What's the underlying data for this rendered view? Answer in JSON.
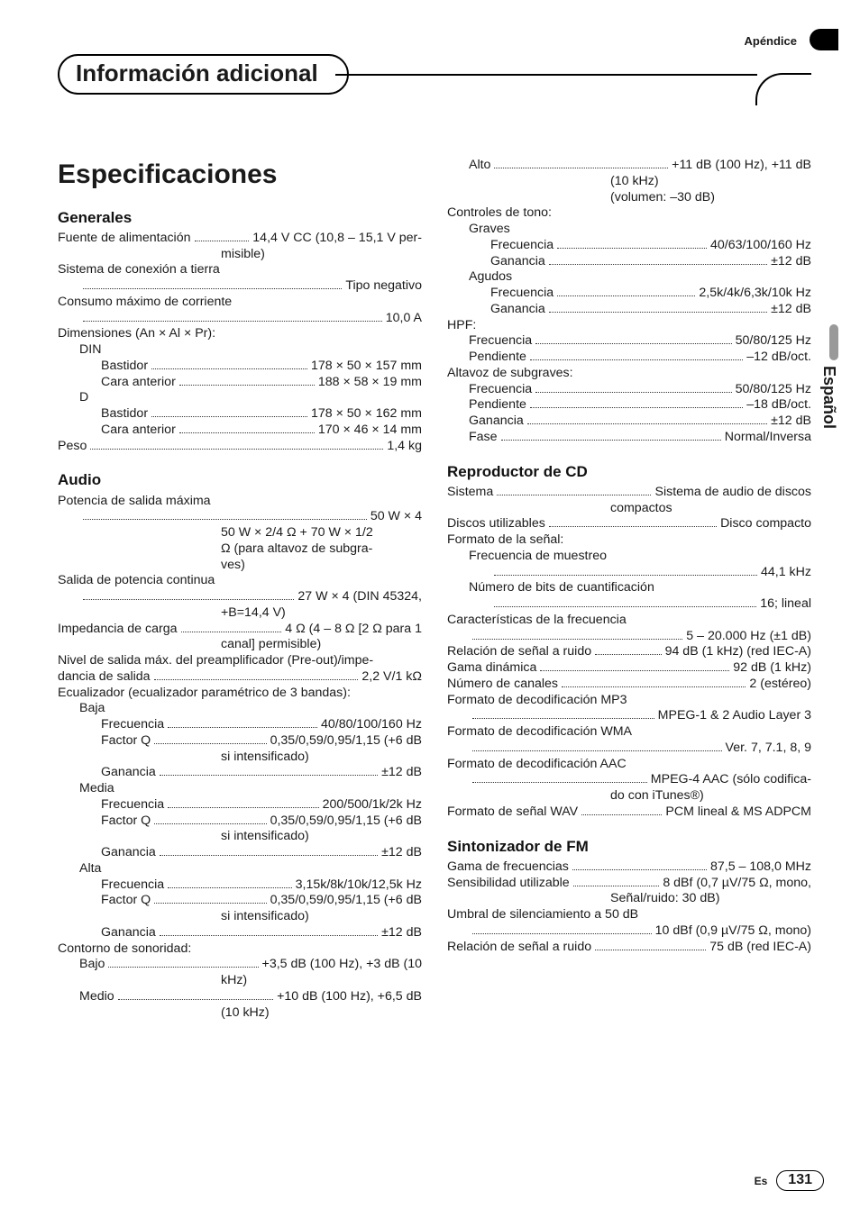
{
  "appendix_label": "Apéndice",
  "header_title": "Información adicional",
  "main_title": "Especificaciones",
  "side_tab_lang": "Español",
  "footer": {
    "lang": "Es",
    "page": "131"
  },
  "left": {
    "generales": {
      "heading": "Generales",
      "items": [
        {
          "label": "Fuente de alimentación",
          "value": "14,4 V CC (10,8 – 15,1 V per-",
          "cont": [
            "misible)"
          ]
        },
        {
          "plain": "Sistema de conexión a tierra"
        },
        {
          "label": "",
          "value": "Tipo negativo",
          "ind": 1
        },
        {
          "plain": "Consumo máximo de corriente"
        },
        {
          "label": "",
          "value": "10,0 A",
          "ind": 1
        },
        {
          "plain": "Dimensiones (An × Al × Pr):"
        },
        {
          "plain": "DIN",
          "ind": 1
        },
        {
          "label": "Bastidor",
          "value": "178 × 50 × 157 mm",
          "ind": 2
        },
        {
          "label": "Cara anterior",
          "value": "188 × 58 × 19 mm",
          "ind": 2
        },
        {
          "plain": "D",
          "ind": 1
        },
        {
          "label": "Bastidor",
          "value": "178 × 50 × 162 mm",
          "ind": 2
        },
        {
          "label": "Cara anterior",
          "value": "170 × 46 × 14 mm",
          "ind": 2
        },
        {
          "label": "Peso",
          "value": "1,4 kg"
        }
      ]
    },
    "audio": {
      "heading": "Audio",
      "items": [
        {
          "plain": "Potencia de salida máxima"
        },
        {
          "label": "",
          "value": "50 W × 4",
          "ind": 1
        },
        {
          "cont_only": "50 W × 2/4 Ω + 70 W × 1/2"
        },
        {
          "cont_only": "Ω (para altavoz de subgra-"
        },
        {
          "cont_only": "ves)"
        },
        {
          "plain": "Salida de potencia continua"
        },
        {
          "label": "",
          "value": "27 W × 4 (DIN 45324,",
          "ind": 1
        },
        {
          "cont_only": "+B=14,4 V)"
        },
        {
          "label": "Impedancia de carga",
          "value": "4 Ω (4 – 8 Ω [2 Ω para 1"
        },
        {
          "cont_only": "canal] permisible)"
        },
        {
          "plain": "Nivel de salida máx. del preamplificador (Pre-out)/impe-"
        },
        {
          "label": "dancia de salida",
          "value": "2,2 V/1 kΩ"
        },
        {
          "plain": "Ecualizador (ecualizador paramétrico de 3 bandas):"
        },
        {
          "plain": "Baja",
          "ind": 1
        },
        {
          "label": "Frecuencia",
          "value": "40/80/100/160 Hz",
          "ind": 2
        },
        {
          "label": "Factor Q",
          "value": "0,35/0,59/0,95/1,15 (+6 dB",
          "ind": 2
        },
        {
          "cont_only": "si intensificado)"
        },
        {
          "label": "Ganancia",
          "value": "±12 dB",
          "ind": 2
        },
        {
          "plain": "Media",
          "ind": 1
        },
        {
          "label": "Frecuencia",
          "value": "200/500/1k/2k Hz",
          "ind": 2
        },
        {
          "label": "Factor Q",
          "value": "0,35/0,59/0,95/1,15 (+6 dB",
          "ind": 2
        },
        {
          "cont_only": "si intensificado)"
        },
        {
          "label": "Ganancia",
          "value": "±12 dB",
          "ind": 2
        },
        {
          "plain": "Alta",
          "ind": 1
        },
        {
          "label": "Frecuencia",
          "value": "3,15k/8k/10k/12,5k Hz",
          "ind": 2
        },
        {
          "label": "Factor Q",
          "value": "0,35/0,59/0,95/1,15 (+6 dB",
          "ind": 2
        },
        {
          "cont_only": "si intensificado)"
        },
        {
          "label": "Ganancia",
          "value": "±12 dB",
          "ind": 2
        },
        {
          "plain": "Contorno de sonoridad:"
        },
        {
          "label": "Bajo",
          "value": "+3,5 dB (100 Hz), +3 dB (10",
          "ind": 1
        },
        {
          "cont_only": "kHz)"
        },
        {
          "label": "Medio",
          "value": "+10 dB (100 Hz), +6,5 dB",
          "ind": 1
        },
        {
          "cont_only": "(10 kHz)"
        }
      ]
    }
  },
  "right": {
    "audio_cont": {
      "items": [
        {
          "label": "Alto",
          "value": "+11 dB (100 Hz), +11 dB",
          "ind": 1
        },
        {
          "cont_only": "(10 kHz)"
        },
        {
          "cont_only": "(volumen: –30 dB)"
        },
        {
          "plain": "Controles de tono:"
        },
        {
          "plain": "Graves",
          "ind": 1
        },
        {
          "label": "Frecuencia",
          "value": "40/63/100/160 Hz",
          "ind": 2
        },
        {
          "label": "Ganancia",
          "value": "±12 dB",
          "ind": 2
        },
        {
          "plain": "Agudos",
          "ind": 1
        },
        {
          "label": "Frecuencia",
          "value": "2,5k/4k/6,3k/10k Hz",
          "ind": 2
        },
        {
          "label": "Ganancia",
          "value": "±12 dB",
          "ind": 2
        },
        {
          "plain": "HPF:"
        },
        {
          "label": "Frecuencia",
          "value": "50/80/125 Hz",
          "ind": 1
        },
        {
          "label": "Pendiente",
          "value": "–12 dB/oct.",
          "ind": 1
        },
        {
          "plain": "Altavoz de subgraves:"
        },
        {
          "label": "Frecuencia",
          "value": "50/80/125 Hz",
          "ind": 1
        },
        {
          "label": "Pendiente",
          "value": "–18 dB/oct.",
          "ind": 1
        },
        {
          "label": "Ganancia",
          "value": "±12 dB",
          "ind": 1
        },
        {
          "label": "Fase",
          "value": "Normal/Inversa",
          "ind": 1
        }
      ]
    },
    "cd": {
      "heading": "Reproductor de CD",
      "items": [
        {
          "label": "Sistema",
          "value": "Sistema de audio de discos"
        },
        {
          "cont_only": "compactos"
        },
        {
          "label": "Discos utilizables",
          "value": "Disco compacto"
        },
        {
          "plain": "Formato de la señal:"
        },
        {
          "plain": "Frecuencia de muestreo",
          "ind": 1
        },
        {
          "label": "",
          "value": "44,1 kHz",
          "ind": 2
        },
        {
          "plain": "Número de bits de cuantificación",
          "ind": 1
        },
        {
          "label": "",
          "value": "16; lineal",
          "ind": 2
        },
        {
          "plain": "Características de la frecuencia"
        },
        {
          "label": "",
          "value": "5 – 20.000 Hz (±1 dB)",
          "ind": 1
        },
        {
          "label": "Relación de señal a ruido",
          "value": "94 dB (1 kHz) (red IEC-A)"
        },
        {
          "label": "Gama dinámica",
          "value": "92 dB (1 kHz)"
        },
        {
          "label": "Número de canales",
          "value": "2 (estéreo)"
        },
        {
          "plain": "Formato de decodificación MP3"
        },
        {
          "label": "",
          "value": "MPEG-1 & 2 Audio Layer 3",
          "ind": 1
        },
        {
          "plain": "Formato de decodificación WMA"
        },
        {
          "label": "",
          "value": "Ver. 7, 7.1, 8, 9",
          "ind": 1
        },
        {
          "plain": "Formato de decodificación AAC"
        },
        {
          "label": "",
          "value": "MPEG-4 AAC (sólo codifica-",
          "ind": 1
        },
        {
          "cont_only": "do con iTunes®)"
        },
        {
          "label": "Formato de señal WAV",
          "value": "PCM lineal & MS ADPCM"
        }
      ]
    },
    "fm": {
      "heading": "Sintonizador de FM",
      "items": [
        {
          "label": "Gama de frecuencias",
          "value": "87,5 – 108,0 MHz"
        },
        {
          "label": "Sensibilidad utilizable",
          "value": "8 dBf (0,7 µV/75 Ω, mono,"
        },
        {
          "cont_only": "Señal/ruido: 30 dB)"
        },
        {
          "plain": "Umbral de silenciamiento a 50 dB"
        },
        {
          "label": "",
          "value": "10 dBf (0,9 µV/75 Ω, mono)",
          "ind": 1
        },
        {
          "label": "Relación de señal a ruido",
          "value": "75 dB (red IEC-A)"
        }
      ]
    }
  }
}
